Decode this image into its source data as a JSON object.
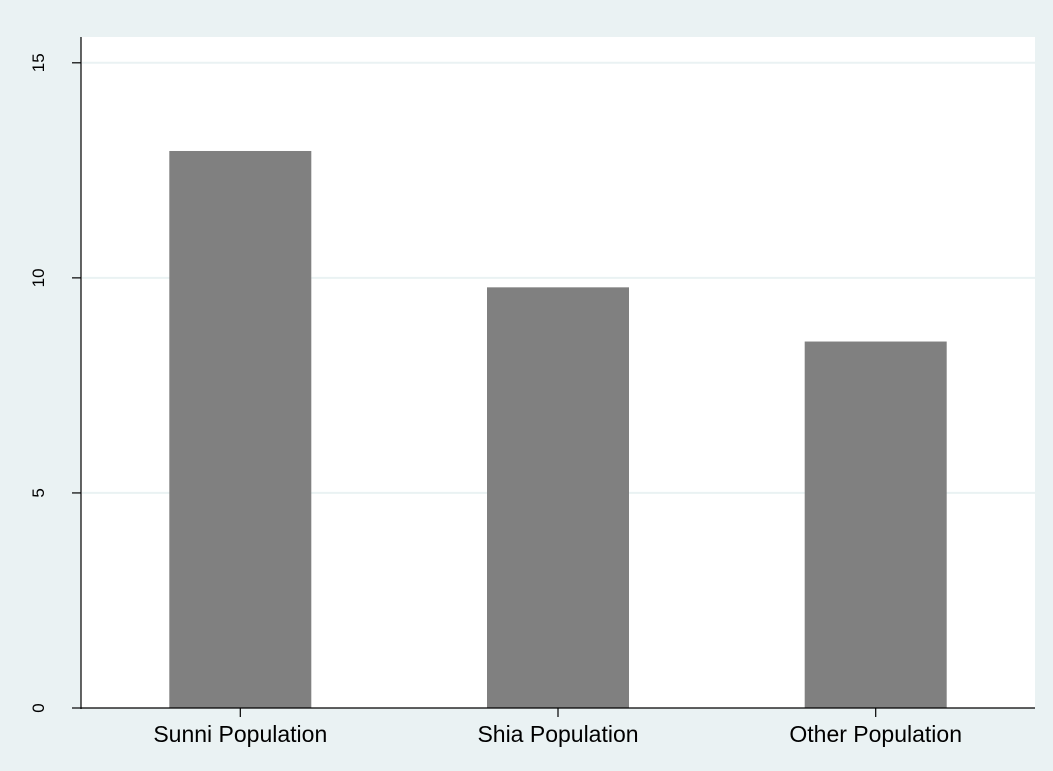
{
  "chart_data": {
    "type": "bar",
    "title": "",
    "xlabel": "",
    "ylabel": "",
    "categories": [
      "Sunni Population",
      "Shia Population",
      "Other Population"
    ],
    "values": [
      12.95,
      9.78,
      8.52
    ],
    "ylim": [
      0,
      15.6
    ],
    "yticks": [
      0,
      5,
      10,
      15
    ],
    "ytick_labels": [
      "0",
      "5",
      "10",
      "15"
    ],
    "grid": true,
    "legend": "none",
    "colors": {
      "bar": "#808080",
      "outer_background": "#eaf2f3",
      "plot_background": "#ffffff",
      "gridline": "#eaf2f3",
      "axis": "#000000"
    }
  }
}
